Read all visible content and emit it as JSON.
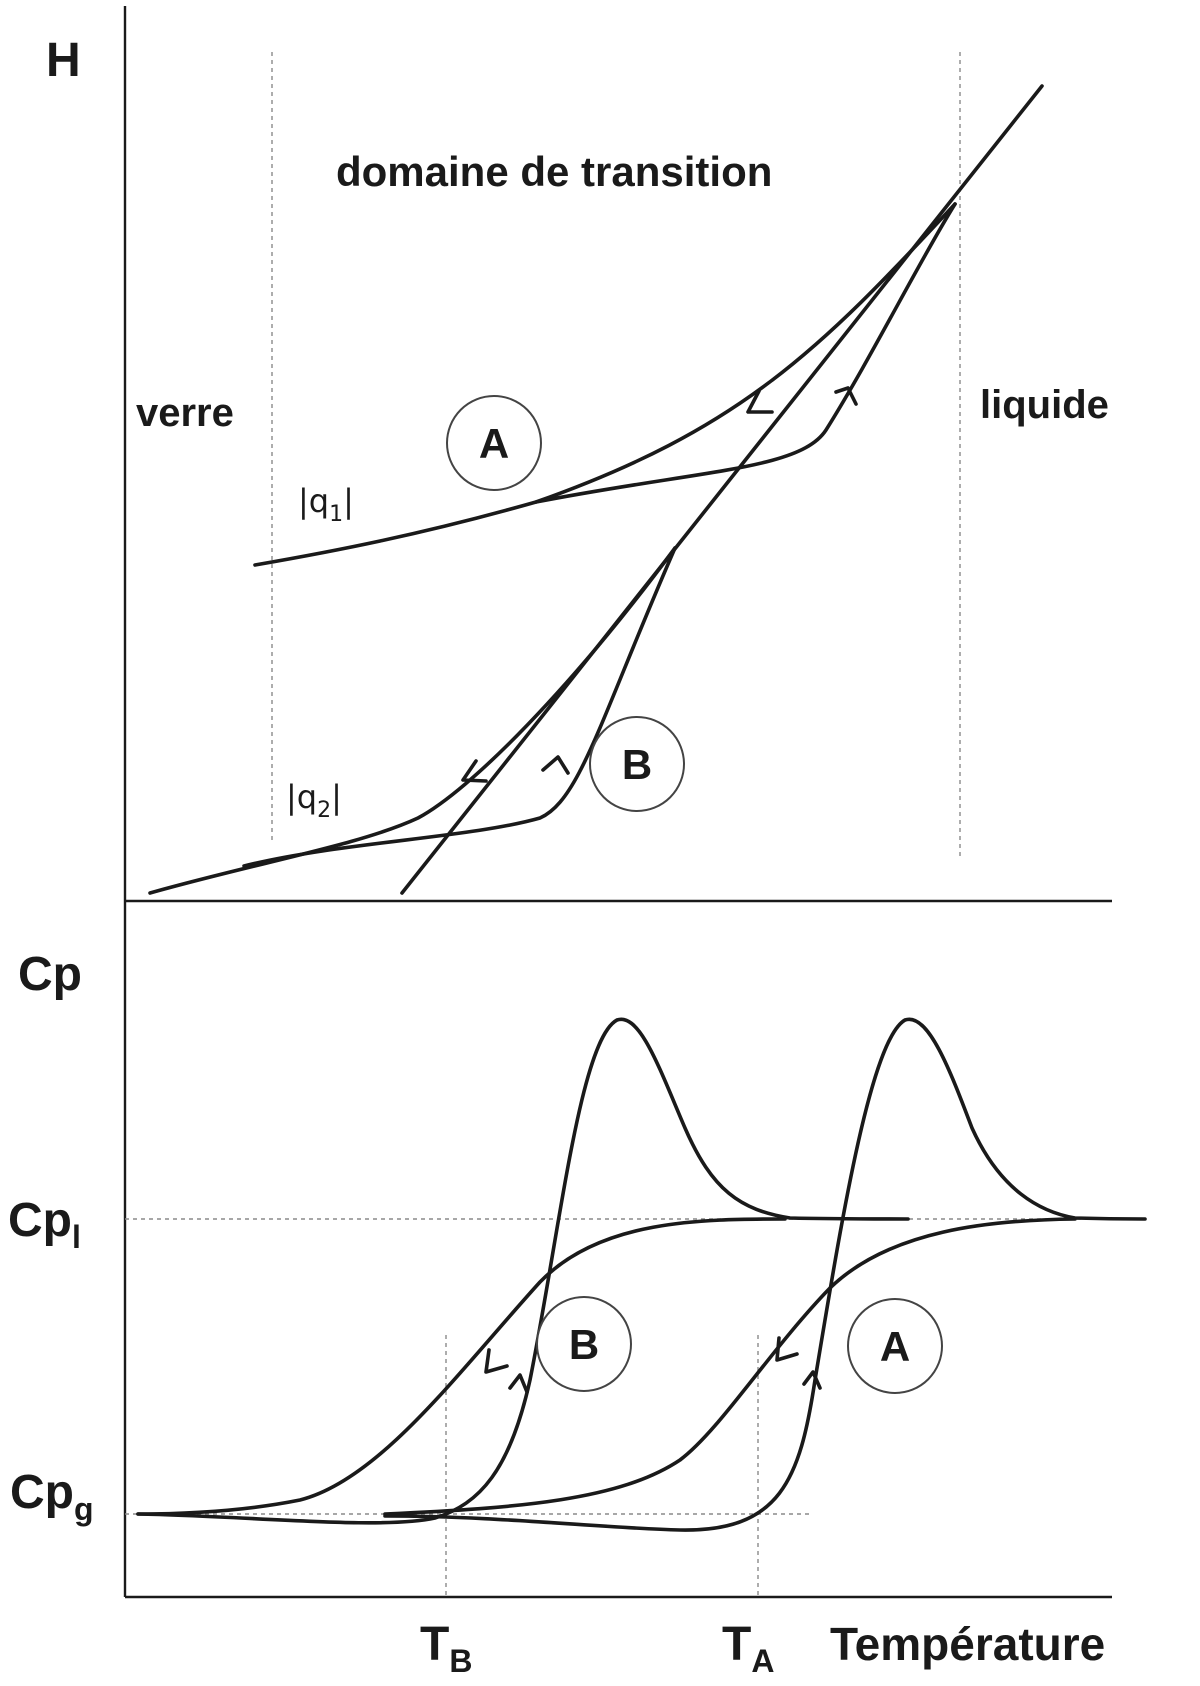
{
  "diagram": {
    "top_panel": {
      "axis_label": "H",
      "region_title": "domaine de transition",
      "left_region": "verre",
      "right_region": "liquide",
      "rate_1": "|q",
      "rate_1_sub": "1",
      "rate_1_end": "|",
      "rate_2": "|q",
      "rate_2_sub": "2",
      "rate_2_end": "|",
      "marker_a": "A",
      "marker_b": "B"
    },
    "bottom_panel": {
      "axis_label": "Cp",
      "level_liquid": "Cp",
      "level_liquid_sub": "l",
      "level_glass": "Cp",
      "level_glass_sub": "g",
      "marker_a": "A",
      "marker_b": "B"
    },
    "x_axis": {
      "label": "Température",
      "tick_b": "T",
      "tick_b_sub": "B",
      "tick_a": "T",
      "tick_a_sub": "A"
    }
  }
}
